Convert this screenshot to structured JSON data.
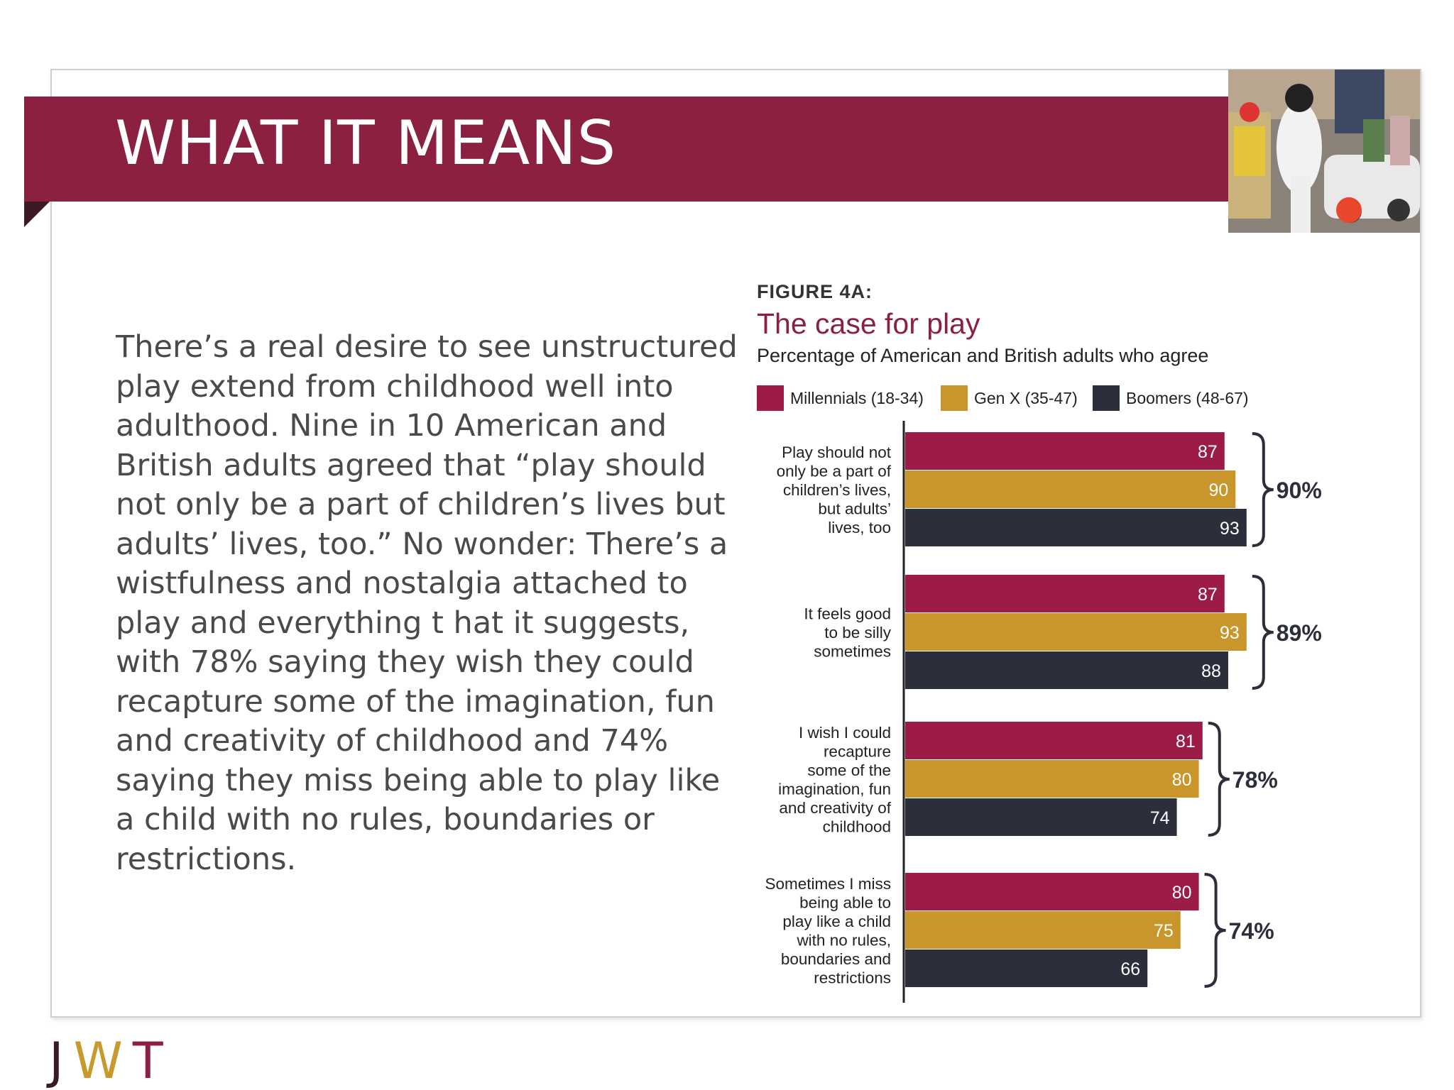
{
  "slide": {
    "title": "WHAT IT MEANS",
    "body": "There’s a real desire to see unstructured play extend from childhood well into adulthood. Nine in 10 American and British adults agreed that “play should not only be a part of children’s lives but adults’ lives, too.” No wonder: There’s a wistfulness and nostalgia attached to play and everything t hat it suggests, with 78% saying they wish they could recapture some of the imagination, fun and creativity of childhood and 74% saying they miss being able to play like a child with no rules, boundaries or restrictions.",
    "logo": {
      "j": "J",
      "w": "W",
      "t": "T"
    },
    "photo_icon": "parade-photo"
  },
  "chart_data": {
    "type": "bar",
    "orientation": "horizontal",
    "figure_label": "FIGURE 4A:",
    "title": "The case for play",
    "subtitle": "Percentage of American and British adults who agree",
    "legend_position": "top",
    "grid": false,
    "xlim": [
      0,
      100
    ],
    "categories": [
      [
        "Play should not",
        "only be a part of",
        "children’s lives,",
        "but adults’",
        "lives, too"
      ],
      [
        "It feels good",
        "to be silly",
        "sometimes"
      ],
      [
        "I wish I could",
        "recapture",
        "some of the",
        "imagination, fun",
        "and creativity of",
        "childhood"
      ],
      [
        "Sometimes I miss",
        "being able to",
        "play like a child",
        "with no rules,",
        "boundaries and",
        "restrictions"
      ]
    ],
    "series": [
      {
        "name": "Millennials (18-34)",
        "color": "#9c1c47",
        "values": [
          87,
          87,
          81,
          80
        ]
      },
      {
        "name": "Gen X (35-47)",
        "color": "#c8962a",
        "values": [
          90,
          93,
          80,
          75
        ]
      },
      {
        "name": "Boomers (48-67)",
        "color": "#2c2e3c",
        "values": [
          93,
          88,
          74,
          66
        ]
      }
    ],
    "totals": [
      "90%",
      "89%",
      "78%",
      "74%"
    ]
  }
}
